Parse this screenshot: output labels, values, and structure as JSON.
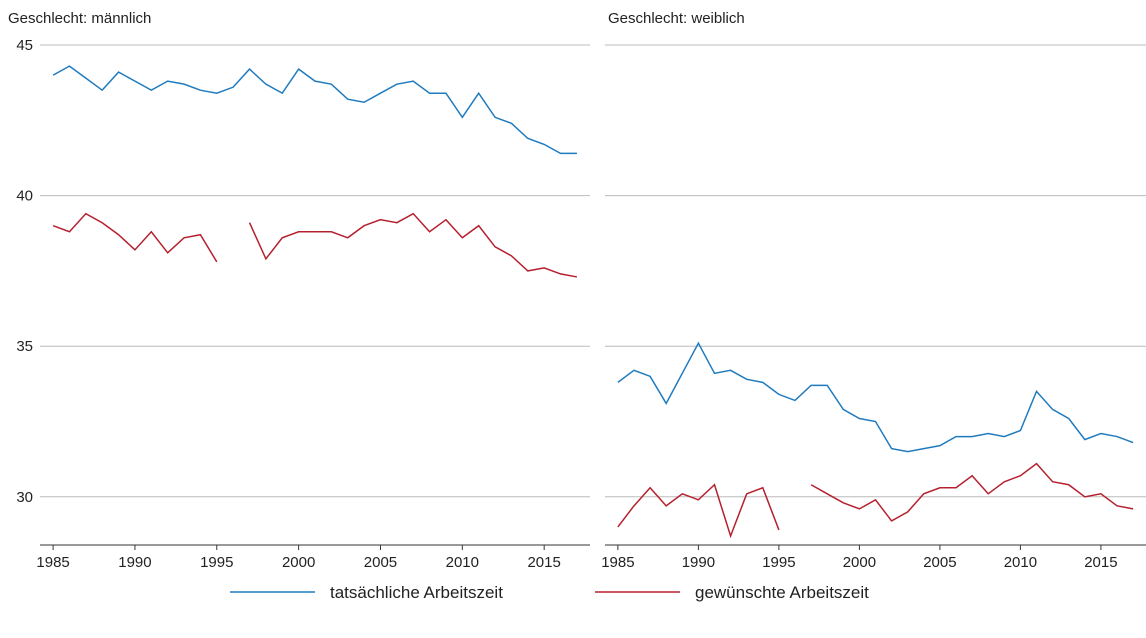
{
  "chart_data": [
    {
      "type": "line",
      "title": "Geschlecht: männlich",
      "x": [
        1985,
        1986,
        1987,
        1988,
        1989,
        1990,
        1991,
        1992,
        1993,
        1994,
        1995,
        1996,
        1997,
        1998,
        1999,
        2000,
        2001,
        2002,
        2003,
        2004,
        2005,
        2006,
        2007,
        2008,
        2009,
        2010,
        2011,
        2012,
        2013,
        2014,
        2015,
        2016,
        2017
      ],
      "series": [
        {
          "name": "tatsächliche Arbeitszeit",
          "color": "#1f7bbf",
          "values": [
            44.0,
            44.3,
            43.9,
            43.5,
            44.1,
            43.8,
            43.5,
            43.8,
            43.7,
            43.5,
            43.4,
            43.6,
            44.2,
            43.7,
            43.4,
            44.2,
            43.8,
            43.7,
            43.2,
            43.1,
            43.4,
            43.7,
            43.8,
            43.4,
            43.4,
            42.6,
            43.4,
            42.6,
            42.4,
            41.9,
            41.7,
            41.4,
            41.4
          ]
        },
        {
          "name": "gewünschte Arbeitszeit",
          "color": "#b5202e",
          "values": [
            39.0,
            38.8,
            39.4,
            39.1,
            38.7,
            38.2,
            38.8,
            38.1,
            38.6,
            38.7,
            37.8,
            null,
            39.1,
            37.9,
            38.6,
            38.8,
            38.8,
            38.8,
            38.6,
            39.0,
            39.2,
            39.1,
            39.4,
            38.8,
            39.2,
            38.6,
            39.0,
            38.3,
            38.0,
            37.5,
            37.6,
            37.4,
            37.3
          ]
        }
      ],
      "xlim": [
        1984.2,
        2017.8
      ],
      "xticks": [
        1985,
        1990,
        1995,
        2000,
        2005,
        2010,
        2015
      ],
      "ylim": [
        28.4,
        45
      ],
      "yticks": [
        30,
        35,
        40,
        45
      ],
      "grid": true
    },
    {
      "type": "line",
      "title": "Geschlecht: weiblich",
      "x": [
        1985,
        1986,
        1987,
        1988,
        1989,
        1990,
        1991,
        1992,
        1993,
        1994,
        1995,
        1996,
        1997,
        1998,
        1999,
        2000,
        2001,
        2002,
        2003,
        2004,
        2005,
        2006,
        2007,
        2008,
        2009,
        2010,
        2011,
        2012,
        2013,
        2014,
        2015,
        2016,
        2017
      ],
      "series": [
        {
          "name": "tatsächliche Arbeitszeit",
          "color": "#1f7bbf",
          "values": [
            33.8,
            34.2,
            34.0,
            33.1,
            34.1,
            35.1,
            34.1,
            34.2,
            33.9,
            33.8,
            33.4,
            33.2,
            33.7,
            33.7,
            32.9,
            32.6,
            32.5,
            31.6,
            31.5,
            31.6,
            31.7,
            32.0,
            32.0,
            32.1,
            32.0,
            32.2,
            33.5,
            32.9,
            32.6,
            31.9,
            32.1,
            32.0,
            31.8
          ]
        },
        {
          "name": "gewünschte Arbeitszeit",
          "color": "#b5202e",
          "values": [
            29.0,
            29.7,
            30.3,
            29.7,
            30.1,
            29.9,
            30.4,
            28.7,
            30.1,
            30.3,
            28.9,
            null,
            30.4,
            30.1,
            29.8,
            29.6,
            29.9,
            29.2,
            29.5,
            30.1,
            30.3,
            30.3,
            30.7,
            30.1,
            30.5,
            30.7,
            31.1,
            30.5,
            30.4,
            30.0,
            30.1,
            29.7,
            29.6
          ]
        }
      ],
      "xlim": [
        1984.2,
        2017.8
      ],
      "xticks": [
        1985,
        1990,
        1995,
        2000,
        2005,
        2010,
        2015
      ],
      "ylim": [
        28.4,
        45
      ],
      "yticks": [
        30,
        35,
        40,
        45
      ],
      "grid": true
    }
  ]
}
